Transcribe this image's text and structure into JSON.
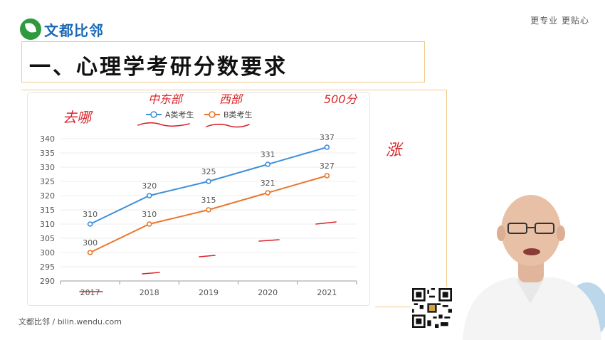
{
  "brand": {
    "name": "文都比邻",
    "slogan": "更专业  更贴心"
  },
  "slide": {
    "title": "一、心理学考研分数要求"
  },
  "footer": {
    "text": "文都比邻 / bilin.wendu.com"
  },
  "colors": {
    "series_a": "#3d8fd9",
    "series_b": "#e8772e",
    "accent_frame": "#f2c98a",
    "ink": "#d9262c"
  },
  "annotations": {
    "left": "去哪",
    "mid_east": "中东部",
    "west": "西部",
    "total": "500分",
    "rise": "涨"
  },
  "chart_data": {
    "type": "line",
    "title": "",
    "xlabel": "",
    "ylabel": "",
    "categories": [
      "2017",
      "2018",
      "2019",
      "2020",
      "2021"
    ],
    "ylim": [
      290,
      340
    ],
    "yticks": [
      290,
      295,
      300,
      305,
      310,
      315,
      320,
      325,
      330,
      335,
      340
    ],
    "grid": true,
    "legend_position": "top-center",
    "series": [
      {
        "name": "A类考生",
        "values": [
          310,
          320,
          325,
          331,
          337
        ],
        "color": "#3d8fd9"
      },
      {
        "name": "B类考生",
        "values": [
          300,
          310,
          315,
          321,
          327
        ],
        "color": "#e8772e"
      }
    ]
  }
}
